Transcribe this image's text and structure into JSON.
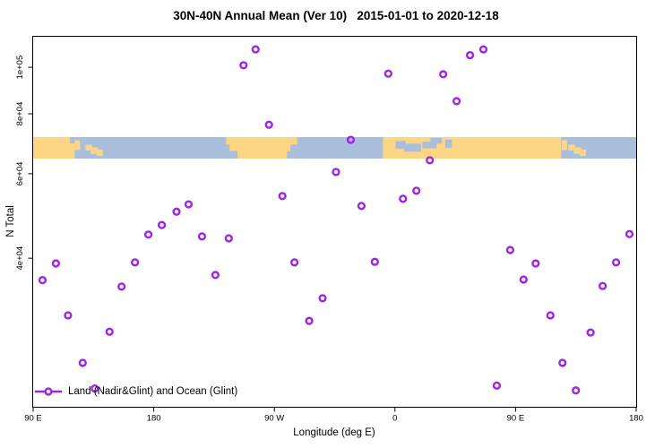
{
  "chart_data": {
    "type": "scatter",
    "title": "30N-40N Annual Mean (Ver 10)   2015-01-01 to 2020-12-18",
    "xlabel": "Longitude (deg E)",
    "ylabel": "N Total",
    "x_scale": "linear",
    "y_scale": "log10",
    "xlim": [
      90,
      540
    ],
    "ylim": [
      19600,
      116300
    ],
    "grid": false,
    "x_ticks": [
      {
        "lon": 90,
        "label": "90 E"
      },
      {
        "lon": 180,
        "label": "180"
      },
      {
        "lon": 270,
        "label": "90 W"
      },
      {
        "lon": 360,
        "label": "0"
      },
      {
        "lon": 450,
        "label": "90 E"
      },
      {
        "lon": 540,
        "label": "180"
      }
    ],
    "y_ticks": [
      {
        "value": 100000,
        "label": "1e+05"
      },
      {
        "value": 80000,
        "label": "8e+04"
      },
      {
        "value": 60000,
        "label": "6e+04"
      },
      {
        "value": 40000,
        "label": "4e+04"
      }
    ],
    "legend": {
      "label": "Land (Nadir&Glint) and Ocean (Glint)",
      "position": "bottom-left"
    },
    "series": [
      {
        "name": "Land (Nadir&Glint) and Ocean (Glint)",
        "marker": "open-circle",
        "color": "#A020F0",
        "points": [
          {
            "lon": 97,
            "n": 36000
          },
          {
            "lon": 107,
            "n": 39000
          },
          {
            "lon": 116,
            "n": 30400
          },
          {
            "lon": 127,
            "n": 24200
          },
          {
            "lon": 136,
            "n": 21400
          },
          {
            "lon": 147,
            "n": 28100
          },
          {
            "lon": 156,
            "n": 34900
          },
          {
            "lon": 166,
            "n": 39200
          },
          {
            "lon": 176,
            "n": 44800
          },
          {
            "lon": 186,
            "n": 46900
          },
          {
            "lon": 197,
            "n": 50000
          },
          {
            "lon": 206,
            "n": 51800
          },
          {
            "lon": 216,
            "n": 44400
          },
          {
            "lon": 226,
            "n": 36900
          },
          {
            "lon": 236,
            "n": 44000
          },
          {
            "lon": 247,
            "n": 101000
          },
          {
            "lon": 256,
            "n": 109000
          },
          {
            "lon": 266,
            "n": 75900
          },
          {
            "lon": 276,
            "n": 53900
          },
          {
            "lon": 285,
            "n": 39200
          },
          {
            "lon": 296,
            "n": 29600
          },
          {
            "lon": 306,
            "n": 33000
          },
          {
            "lon": 316,
            "n": 60500
          },
          {
            "lon": 327,
            "n": 70600
          },
          {
            "lon": 335,
            "n": 51400
          },
          {
            "lon": 345,
            "n": 39300
          },
          {
            "lon": 355,
            "n": 97000
          },
          {
            "lon": 366,
            "n": 53200
          },
          {
            "lon": 376,
            "n": 55300
          },
          {
            "lon": 386,
            "n": 64000
          },
          {
            "lon": 396,
            "n": 96700
          },
          {
            "lon": 406,
            "n": 85000
          },
          {
            "lon": 416,
            "n": 106000
          },
          {
            "lon": 426,
            "n": 109000
          },
          {
            "lon": 436,
            "n": 21700
          },
          {
            "lon": 446,
            "n": 41600
          },
          {
            "lon": 456,
            "n": 36100
          },
          {
            "lon": 465,
            "n": 39000
          },
          {
            "lon": 476,
            "n": 30400
          },
          {
            "lon": 485,
            "n": 24200
          },
          {
            "lon": 495,
            "n": 21200
          },
          {
            "lon": 506,
            "n": 28000
          },
          {
            "lon": 515,
            "n": 35000
          },
          {
            "lon": 525,
            "n": 39200
          },
          {
            "lon": 535,
            "n": 44900
          }
        ]
      }
    ],
    "map_band": {
      "description": "world-map strip of the 30N-40N latitude zone",
      "ocean_color": "#A9BEDA",
      "land_color": "#FCD682",
      "land_segments": [
        {
          "name": "asia",
          "from": 90,
          "to": 121,
          "top": 0,
          "bottom": 1
        },
        {
          "name": "korea",
          "from": 121,
          "to": 125,
          "top": 0.15,
          "bottom": 0.6
        },
        {
          "name": "japan-west",
          "from": 129,
          "to": 134,
          "top": 0.35,
          "bottom": 0.62
        },
        {
          "name": "japan-central",
          "from": 133,
          "to": 138.5,
          "top": 0.48,
          "bottom": 0.78
        },
        {
          "name": "japan-east",
          "from": 137.5,
          "to": 142,
          "top": 0.58,
          "bottom": 0.88
        },
        {
          "name": "north-america-north",
          "from": 234,
          "to": 287,
          "top": 0,
          "bottom": 0.35
        },
        {
          "name": "north-america-mid",
          "from": 236.5,
          "to": 282,
          "top": 0.3,
          "bottom": 0.65
        },
        {
          "name": "north-america-south",
          "from": 242.5,
          "to": 279.5,
          "top": 0.6,
          "bottom": 1
        },
        {
          "name": "africa-eurasia",
          "from": 351,
          "to": 484,
          "top": 0,
          "bottom": 1
        },
        {
          "name": "korea-wrap",
          "from": 484.5,
          "to": 488.5,
          "top": 0.15,
          "bottom": 0.6
        },
        {
          "name": "japan-west-wrap",
          "from": 489.5,
          "to": 494.5,
          "top": 0.35,
          "bottom": 0.62
        },
        {
          "name": "japan-central-wrap",
          "from": 493.5,
          "to": 499,
          "top": 0.48,
          "bottom": 0.78
        },
        {
          "name": "japan-east-wrap",
          "from": 498,
          "to": 502.5,
          "top": 0.58,
          "bottom": 0.88
        }
      ],
      "ocean_patches": [
        {
          "name": "yellow-sea",
          "from": 117.5,
          "to": 121,
          "top": 0,
          "bottom": 0.3
        },
        {
          "name": "west-mediterranean",
          "from": 360.5,
          "to": 368,
          "top": 0.18,
          "bottom": 0.55
        },
        {
          "name": "central-mediterranean",
          "from": 367,
          "to": 379.5,
          "top": 0.3,
          "bottom": 0.68
        },
        {
          "name": "east-mediterranean",
          "from": 380.5,
          "to": 391,
          "top": 0.22,
          "bottom": 0.52
        },
        {
          "name": "black-sea",
          "from": 386.5,
          "to": 395,
          "top": 0.04,
          "bottom": 0.3
        },
        {
          "name": "caspian-sea",
          "from": 397.5,
          "to": 402.5,
          "top": 0.12,
          "bottom": 0.5
        }
      ]
    }
  }
}
